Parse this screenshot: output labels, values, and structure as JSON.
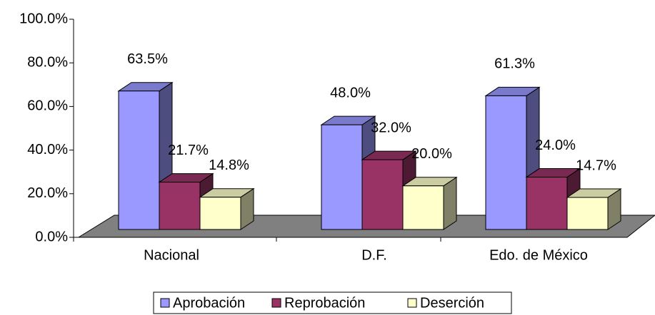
{
  "chart_data": {
    "type": "bar3d",
    "categories": [
      "Nacional",
      "D.F.",
      "Edo. de México"
    ],
    "series": [
      {
        "name": "Aprobación",
        "color": "#9999ff",
        "values": [
          63.5,
          48.0,
          61.3
        ],
        "value_labels": [
          "63.5%",
          "48.0%",
          "61.3%"
        ]
      },
      {
        "name": "Reprobación",
        "color": "#993366",
        "values": [
          21.7,
          32.0,
          24.0
        ],
        "value_labels": [
          "21.7%",
          "32.0%",
          "24.0%"
        ]
      },
      {
        "name": "Deserción",
        "color": "#ffffcc",
        "values": [
          14.8,
          20.0,
          14.7
        ],
        "value_labels": [
          "14.8%",
          "20.0%",
          "14.7%"
        ]
      }
    ],
    "ylim": [
      0,
      100
    ],
    "yticks": [
      {
        "value": 0,
        "label": "0.0%"
      },
      {
        "value": 20,
        "label": "20.0%"
      },
      {
        "value": 40,
        "label": "40.0%"
      },
      {
        "value": 60,
        "label": "60.0%"
      },
      {
        "value": 80,
        "label": "80.0%"
      },
      {
        "value": 100,
        "label": "100.0%"
      }
    ],
    "legend": "bottom"
  }
}
